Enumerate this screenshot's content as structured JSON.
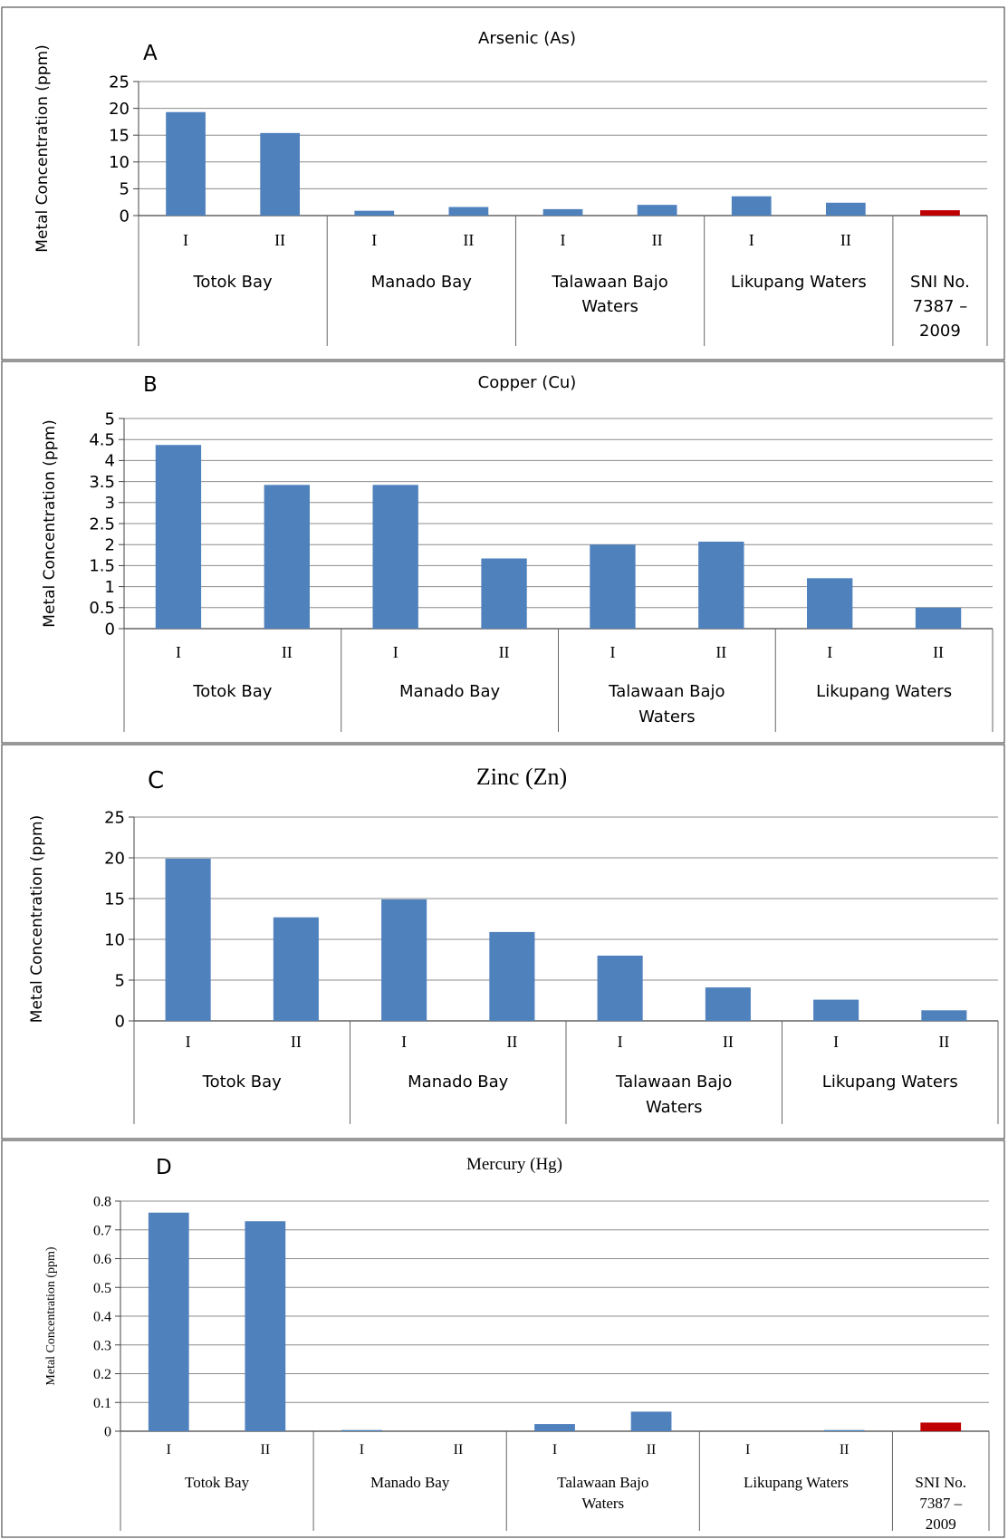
{
  "chart_data": [
    {
      "type": "bar",
      "panel_letter": "A",
      "title": "Arsenic (As)",
      "ylabel": "Metal Concentration (ppm)",
      "ylim": [
        0,
        25
      ],
      "yticks": [
        0,
        5,
        10,
        15,
        20,
        25
      ],
      "grid": true,
      "categories": [
        "I",
        "II",
        "I",
        "II",
        "I",
        "II",
        "I",
        "II",
        ""
      ],
      "groups": [
        {
          "label": [
            "Totok Bay"
          ],
          "span": 2
        },
        {
          "label": [
            "Manado Bay"
          ],
          "span": 2
        },
        {
          "label": [
            "Talawaan Bajo",
            "Waters"
          ],
          "span": 2
        },
        {
          "label": [
            "Likupang Waters"
          ],
          "span": 2
        },
        {
          "label": [
            "SNI No.",
            "7387 –",
            "2009"
          ],
          "span": 1
        }
      ],
      "values": [
        19.3,
        15.4,
        0.9,
        1.6,
        1.2,
        2.0,
        3.6,
        2.4,
        1.0
      ],
      "bar_colors": [
        "#4f81bd",
        "#4f81bd",
        "#4f81bd",
        "#4f81bd",
        "#4f81bd",
        "#4f81bd",
        "#4f81bd",
        "#4f81bd",
        "#c00000"
      ]
    },
    {
      "type": "bar",
      "panel_letter": "B",
      "title": "Copper (Cu)",
      "ylabel": "Metal Concentration (ppm)",
      "ylim": [
        0,
        5
      ],
      "yticks": [
        0,
        0.5,
        1,
        1.5,
        2,
        2.5,
        3,
        3.5,
        4,
        4.5,
        5
      ],
      "grid": true,
      "categories": [
        "I",
        "II",
        "I",
        "II",
        "I",
        "II",
        "I",
        "II"
      ],
      "groups": [
        {
          "label": [
            "Totok Bay"
          ],
          "span": 2
        },
        {
          "label": [
            "Manado Bay"
          ],
          "span": 2
        },
        {
          "label": [
            "Talawaan Bajo",
            "Waters"
          ],
          "span": 2
        },
        {
          "label": [
            "Likupang Waters"
          ],
          "span": 2
        }
      ],
      "values": [
        4.37,
        3.42,
        3.42,
        1.67,
        2.0,
        2.07,
        1.2,
        0.5
      ],
      "bar_colors": [
        "#4f81bd",
        "#4f81bd",
        "#4f81bd",
        "#4f81bd",
        "#4f81bd",
        "#4f81bd",
        "#4f81bd",
        "#4f81bd"
      ]
    },
    {
      "type": "bar",
      "panel_letter": "C",
      "title": "Zinc (Zn)",
      "ylabel": "Metal Concentration (ppm)",
      "ylim": [
        0,
        25
      ],
      "yticks": [
        0,
        5,
        10,
        15,
        20,
        25
      ],
      "grid": true,
      "categories": [
        "I",
        "II",
        "I",
        "II",
        "I",
        "II",
        "I",
        "II"
      ],
      "groups": [
        {
          "label": [
            "Totok Bay"
          ],
          "span": 2
        },
        {
          "label": [
            "Manado Bay"
          ],
          "span": 2
        },
        {
          "label": [
            "Talawaan Bajo",
            "Waters"
          ],
          "span": 2
        },
        {
          "label": [
            "Likupang Waters"
          ],
          "span": 2
        }
      ],
      "values": [
        19.9,
        12.7,
        14.9,
        10.9,
        8.0,
        4.1,
        2.6,
        1.3
      ],
      "bar_colors": [
        "#4f81bd",
        "#4f81bd",
        "#4f81bd",
        "#4f81bd",
        "#4f81bd",
        "#4f81bd",
        "#4f81bd",
        "#4f81bd"
      ]
    },
    {
      "type": "bar",
      "panel_letter": "D",
      "title": "Mercury (Hg)",
      "ylabel": "Metal Concentration (ppm)",
      "ylim": [
        0,
        0.8
      ],
      "yticks": [
        0,
        0.1,
        0.2,
        0.3,
        0.4,
        0.5,
        0.6,
        0.7,
        0.8
      ],
      "grid": true,
      "categories": [
        "I",
        "II",
        "I",
        "II",
        "I",
        "II",
        "I",
        "II",
        ""
      ],
      "groups": [
        {
          "label": [
            "Totok Bay"
          ],
          "span": 2
        },
        {
          "label": [
            "Manado Bay"
          ],
          "span": 2
        },
        {
          "label": [
            "Talawaan Bajo",
            "Waters"
          ],
          "span": 2
        },
        {
          "label": [
            "Likupang Waters"
          ],
          "span": 2
        },
        {
          "label": [
            "SNI No.",
            "7387 –",
            "2009"
          ],
          "span": 1
        }
      ],
      "values": [
        0.76,
        0.73,
        0.004,
        0.0,
        0.025,
        0.068,
        0.0,
        0.004,
        0.03
      ],
      "bar_colors": [
        "#4f81bd",
        "#4f81bd",
        "#4f81bd",
        "#4f81bd",
        "#4f81bd",
        "#4f81bd",
        "#4f81bd",
        "#4f81bd",
        "#c00000"
      ]
    }
  ]
}
